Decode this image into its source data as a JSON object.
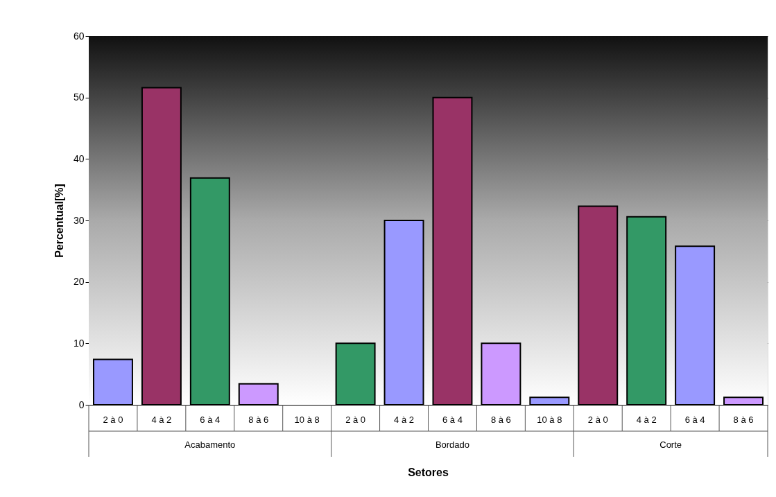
{
  "chart_data": {
    "type": "bar",
    "xlabel": "Setores",
    "ylabel": "Percentual[%]",
    "categories": [
      "2 à 0",
      "4 à 2",
      "6 à 4",
      "8 à 6",
      "10 à 8",
      "2 à 0",
      "4 à 2",
      "6 à 4",
      "8 à 6",
      "10 à 8",
      "2 à 0",
      "4 à 2",
      "6 à 4",
      "8 à 6"
    ],
    "values": [
      7.4,
      51.6,
      36.9,
      3.4,
      0,
      10,
      30,
      50,
      10,
      1.2,
      32.3,
      30.6,
      25.8,
      1.2
    ],
    "colors": [
      "#9999ff",
      "#993366",
      "#339966",
      "#cc99ff",
      "#9999ff",
      "#339966",
      "#9999ff",
      "#993366",
      "#cc99ff",
      "#9999ff",
      "#993366",
      "#339966",
      "#9999ff",
      "#cc99ff"
    ],
    "annotations": [
      "Acabamento",
      "Bordado",
      "Corte"
    ],
    "ylim": [
      0,
      60
    ],
    "yticks": [
      0,
      10,
      20,
      30,
      40,
      50,
      60
    ],
    "grid": "y"
  }
}
